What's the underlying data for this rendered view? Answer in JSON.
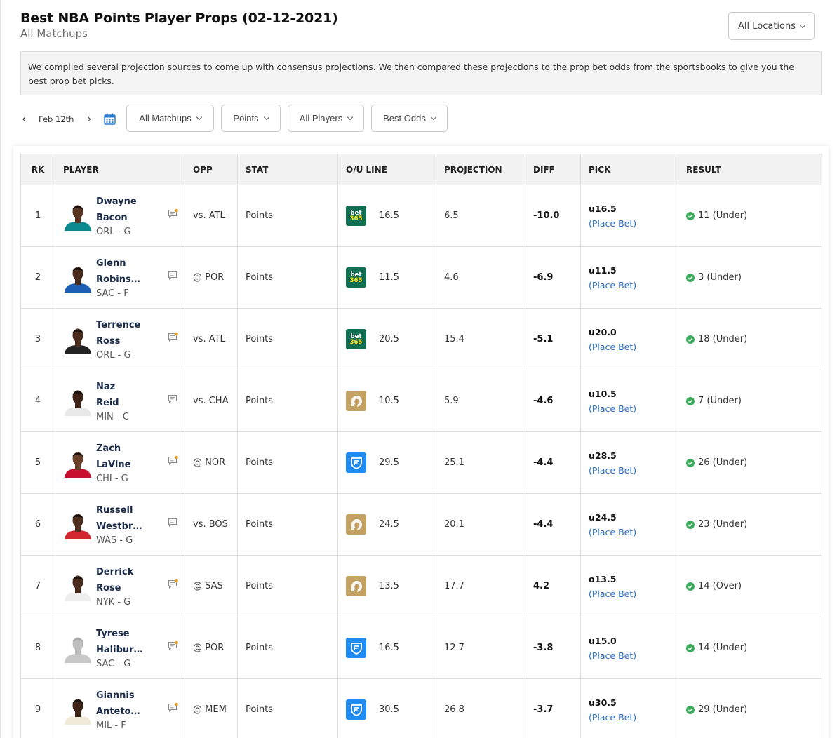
{
  "header": {
    "title": "Best NBA Points Player Props (02-12-2021)",
    "subtitle": "All Matchups",
    "location_label": "All Locations"
  },
  "info_text": "We compiled several projection sources to come up with consensus projections. We then compared these projections to the prop bet odds from the sportsbooks to give you the best prop bet picks.",
  "date_nav": {
    "prev": "‹",
    "date": "Feb 12th",
    "next": "›"
  },
  "filters": {
    "matchups": "All Matchups",
    "stat": "Points",
    "players": "All Players",
    "odds": "Best Odds"
  },
  "columns": [
    "RK",
    "PLAYER",
    "OPP",
    "STAT",
    "O/U LINE",
    "PROJECTION",
    "DIFF",
    "PICK",
    "RESULT"
  ],
  "book_labels": {
    "b365_top": "bet",
    "b365_bottom": "365"
  },
  "colors": {
    "bet365": "#126e51",
    "betmgm": "#c2a163",
    "fanduel": "#1e8cf0",
    "link": "#2a6ebd",
    "check": "#3aaa5a"
  },
  "rows": [
    {
      "rk": "1",
      "first": "Dwayne",
      "last": "Bacon",
      "team": "ORL - G",
      "opp": "vs. ATL",
      "stat": "Points",
      "book": "bet365",
      "line": "16.5",
      "proj": "6.5",
      "diff": "-10.0",
      "pick": "u16.5",
      "place": "(Place Bet)",
      "result": "11 (Under)",
      "jersey": "#0a8a8f",
      "skin": "#5a3522",
      "note_alert": true
    },
    {
      "rk": "2",
      "first": "Glenn",
      "last": "Robins…",
      "team": "SAC - F",
      "opp": "@ POR",
      "stat": "Points",
      "book": "bet365",
      "line": "11.5",
      "proj": "4.6",
      "diff": "-6.9",
      "pick": "u11.5",
      "place": "(Place Bet)",
      "result": "3 (Under)",
      "jersey": "#1d5fb4",
      "skin": "#4a2c1c",
      "note_alert": false
    },
    {
      "rk": "3",
      "first": "Terrence",
      "last": "Ross",
      "team": "ORL - G",
      "opp": "vs. ATL",
      "stat": "Points",
      "book": "bet365",
      "line": "20.5",
      "proj": "15.4",
      "diff": "-5.1",
      "pick": "u20.0",
      "place": "(Place Bet)",
      "result": "18 (Under)",
      "jersey": "#222222",
      "skin": "#4a2c1c",
      "note_alert": true
    },
    {
      "rk": "4",
      "first": "Naz",
      "last": "Reid",
      "team": "MIN - C",
      "opp": "vs. CHA",
      "stat": "Points",
      "book": "betmgm",
      "line": "10.5",
      "proj": "5.9",
      "diff": "-4.6",
      "pick": "u10.5",
      "place": "(Place Bet)",
      "result": "7 (Under)",
      "jersey": "#e8e8e8",
      "skin": "#3e2416",
      "note_alert": false
    },
    {
      "rk": "5",
      "first": "Zach",
      "last": "LaVine",
      "team": "CHI - G",
      "opp": "@ NOR",
      "stat": "Points",
      "book": "fanduel",
      "line": "29.5",
      "proj": "25.1",
      "diff": "-4.4",
      "pick": "u28.5",
      "place": "(Place Bet)",
      "result": "26 (Under)",
      "jersey": "#c9102f",
      "skin": "#6b4028",
      "note_alert": true
    },
    {
      "rk": "6",
      "first": "Russell",
      "last": "Westbr…",
      "team": "WAS - G",
      "opp": "vs. BOS",
      "stat": "Points",
      "book": "betmgm",
      "line": "24.5",
      "proj": "20.1",
      "diff": "-4.4",
      "pick": "u24.5",
      "place": "(Place Bet)",
      "result": "23 (Under)",
      "jersey": "#d22630",
      "skin": "#4f2f1d",
      "note_alert": false
    },
    {
      "rk": "7",
      "first": "Derrick",
      "last": "Rose",
      "team": "NYK - G",
      "opp": "@ SAS",
      "stat": "Points",
      "book": "betmgm",
      "line": "13.5",
      "proj": "17.7",
      "diff": "4.2",
      "pick": "o13.5",
      "place": "(Place Bet)",
      "result": "14 (Over)",
      "jersey": "#eeeeee",
      "skin": "#4a2c1c",
      "note_alert": true
    },
    {
      "rk": "8",
      "first": "Tyrese",
      "last": "Halibur…",
      "team": "SAC - G",
      "opp": "@ POR",
      "stat": "Points",
      "book": "fanduel",
      "line": "16.5",
      "proj": "12.7",
      "diff": "-3.8",
      "pick": "u15.0",
      "place": "(Place Bet)",
      "result": "14 (Under)",
      "jersey": "#c8c8c8",
      "skin": "#bdbdbd",
      "note_alert": true
    },
    {
      "rk": "9",
      "first": "Giannis",
      "last": "Anteto…",
      "team": "MIL - F",
      "opp": "@ MEM",
      "stat": "Points",
      "book": "fanduel",
      "line": "30.5",
      "proj": "26.8",
      "diff": "-3.7",
      "pick": "u30.5",
      "place": "(Place Bet)",
      "result": "29 (Under)",
      "jersey": "#f0ebd8",
      "skin": "#3e2416",
      "note_alert": true
    }
  ]
}
